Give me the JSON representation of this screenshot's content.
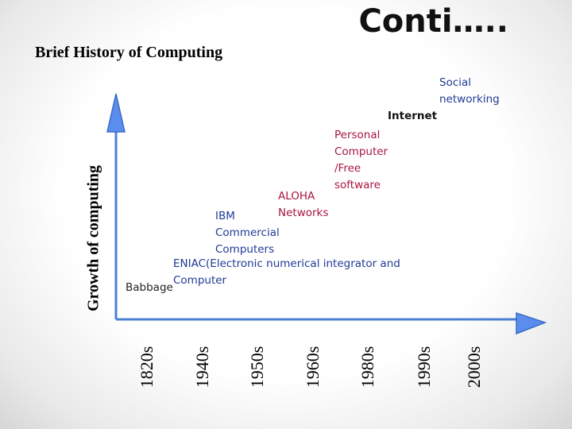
{
  "slide": {
    "title": "Conti…..",
    "subtitle": "Brief History of Computing"
  },
  "axes": {
    "y_label": "Growth of computing",
    "decades": [
      "1820s",
      "1940s",
      "1950s",
      "1960s",
      "1980s",
      "1990s",
      "2000s"
    ],
    "color": "#4a7fd6"
  },
  "events": {
    "babbage": "Babbage",
    "eniac": "ENIAC(Electronic numerical integrator and\nComputer",
    "ibm": "IBM\nCommercial\nComputers",
    "aloha": "ALOHA\nNetworks",
    "personal_computer": "Personal\nComputer\n/Free\nsoftware",
    "internet": "Internet",
    "social": "Social\nnetworking"
  }
}
